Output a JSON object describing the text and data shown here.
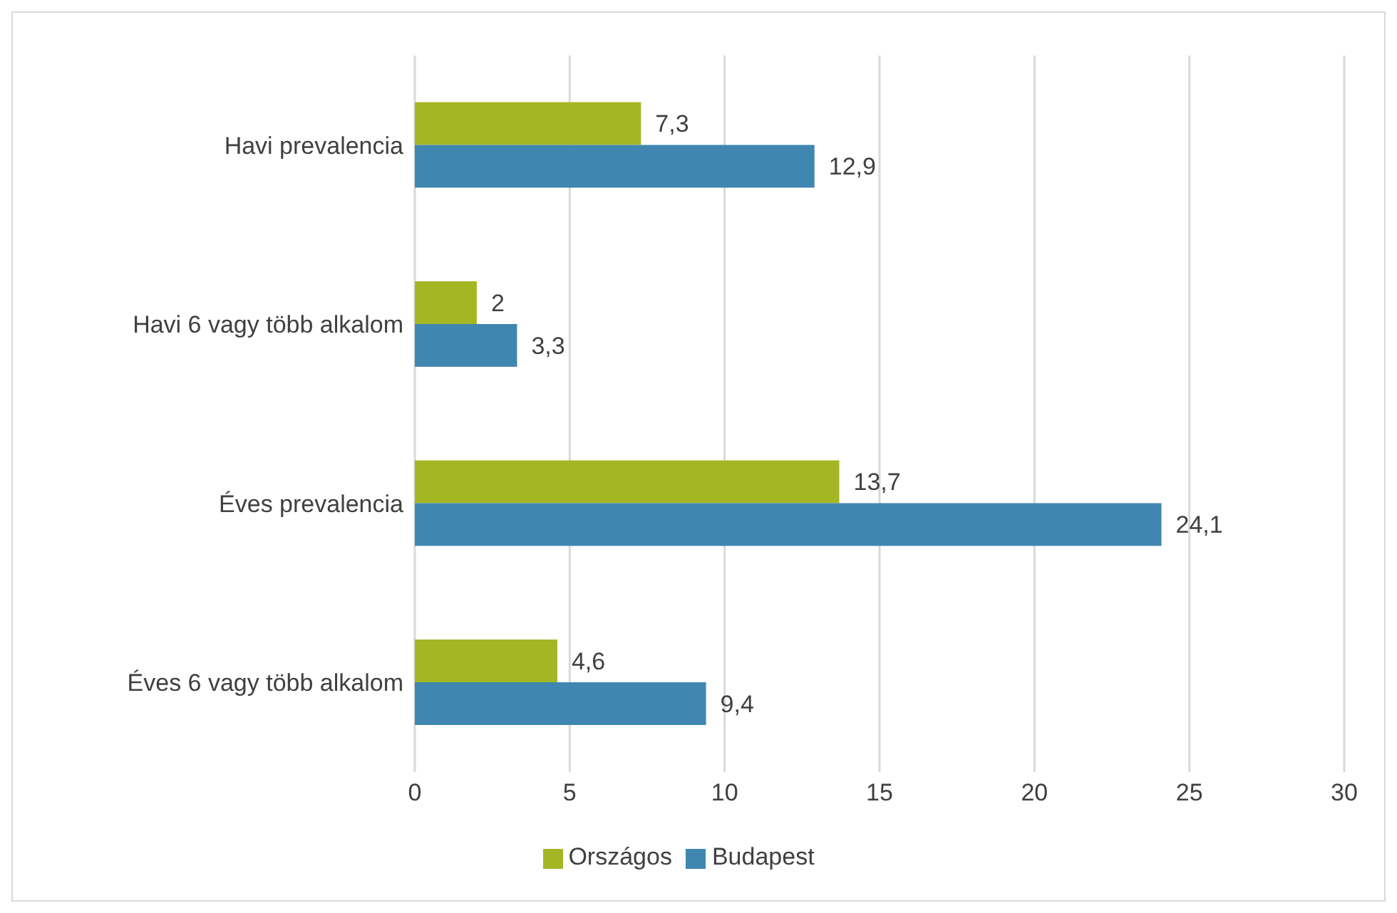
{
  "chart_data": {
    "type": "bar",
    "orientation": "horizontal",
    "categories": [
      "Havi prevalencia",
      "Havi 6 vagy több alkalom",
      "Éves prevalencia",
      "Éves 6 vagy több alkalom"
    ],
    "series": [
      {
        "name": "Országos",
        "color": "#a5b624",
        "values": [
          7.3,
          2,
          13.7,
          4.6
        ],
        "value_labels": [
          "7,3",
          "2",
          "13,7",
          "4,6"
        ]
      },
      {
        "name": "Budapest",
        "color": "#3f87b0",
        "values": [
          12.9,
          3.3,
          24.1,
          9.4
        ],
        "value_labels": [
          "12,9",
          "3,3",
          "24,1",
          "9,4"
        ]
      }
    ],
    "xlim": [
      0,
      30
    ],
    "xticks": [
      0,
      5,
      10,
      15,
      20,
      25,
      30
    ],
    "grid": "x",
    "legend": "bottom"
  }
}
